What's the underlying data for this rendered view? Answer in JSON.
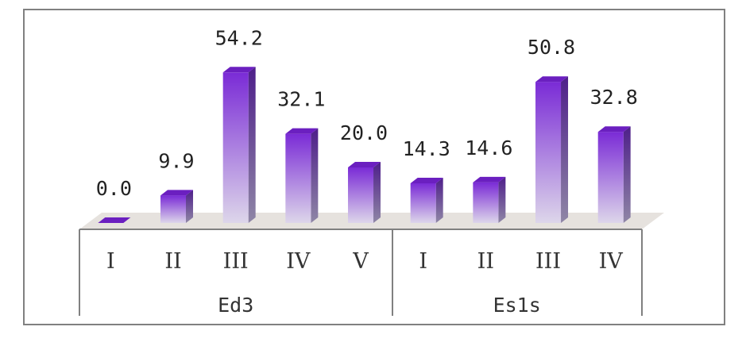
{
  "chart_data": {
    "type": "bar",
    "title": "",
    "xlabel": "",
    "ylabel": "",
    "ylim": [
      0,
      60
    ],
    "grid": false,
    "legend": "none",
    "groups": [
      {
        "name": "Ed3",
        "categories": [
          "I",
          "II",
          "III",
          "IV",
          "V"
        ],
        "values": [
          0.0,
          9.9,
          54.2,
          32.1,
          20.0
        ],
        "value_labels": [
          "0.0",
          "9.9",
          "54.2",
          "32.1",
          "20.0"
        ]
      },
      {
        "name": "Es1s",
        "categories": [
          "I",
          "II",
          "III",
          "IV"
        ],
        "values": [
          14.3,
          14.6,
          50.8,
          32.8
        ],
        "value_labels": [
          "14.3",
          "14.6",
          "50.8",
          "32.8"
        ]
      }
    ]
  },
  "colors": {
    "bar_top": "#7a2bd6",
    "bar_bottom": "#ddd6ea",
    "bar_side": "#5b2a9a",
    "bar_cap": "#6b1fc0",
    "floor": "#e6e2de",
    "frame": "#808080"
  }
}
